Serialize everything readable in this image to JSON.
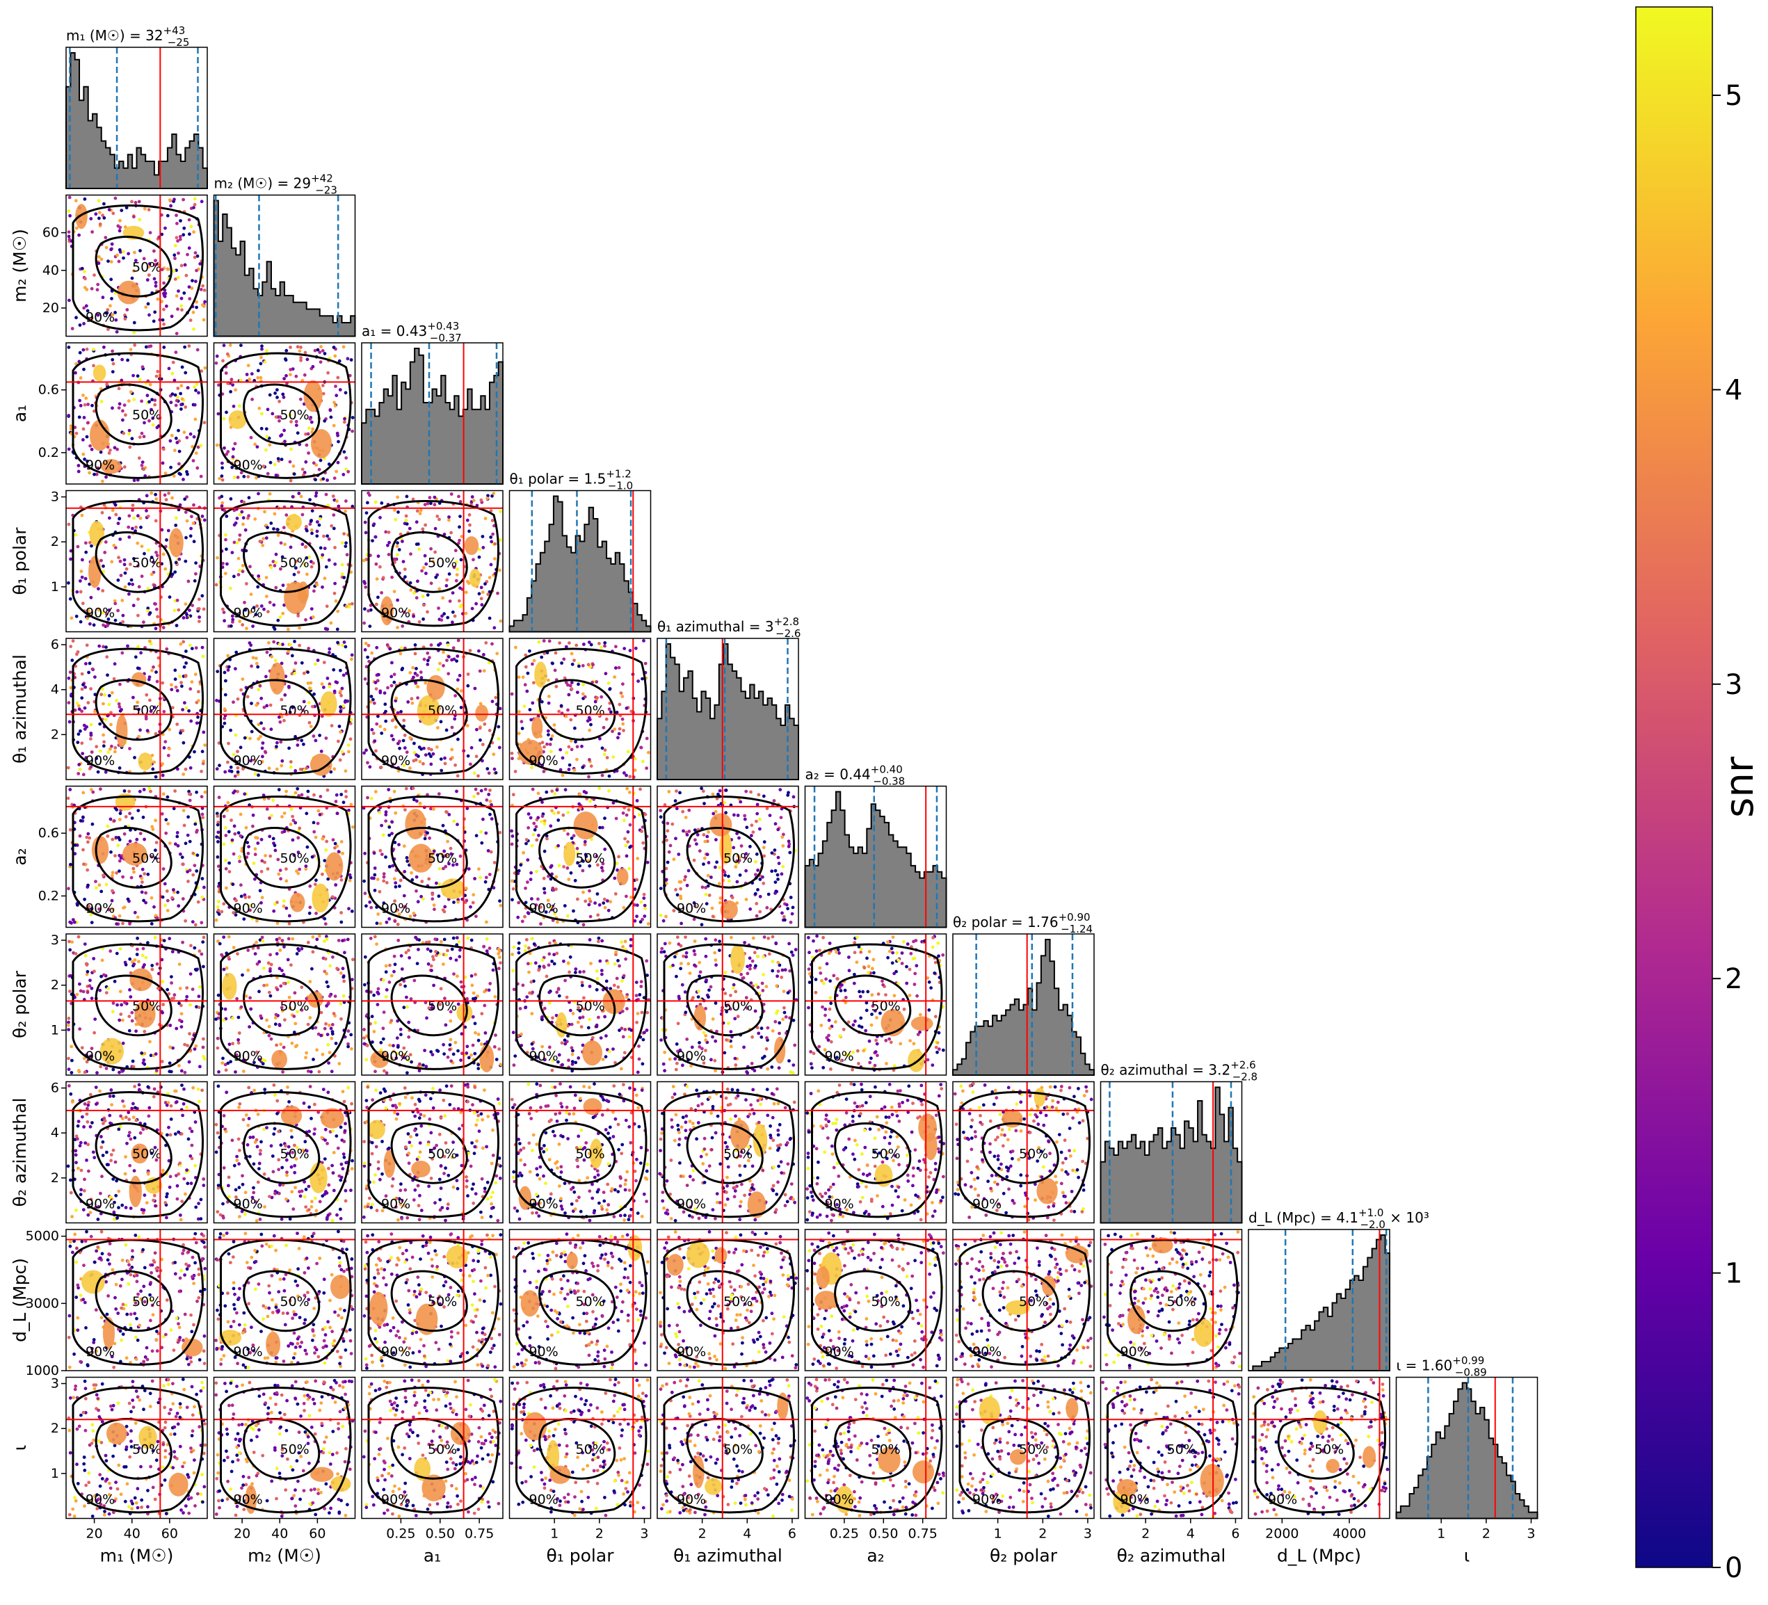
{
  "chart_data": {
    "type": "corner",
    "description_colorbar": {
      "label": "snr",
      "range": [
        0,
        5.3
      ],
      "ticks": [
        "0",
        "1",
        "2",
        "3",
        "4",
        "5"
      ],
      "colormap": [
        "#0d0887",
        "#6a00a8",
        "#b12a90",
        "#e16462",
        "#fca636",
        "#f0f921"
      ]
    },
    "contour_levels": [
      "50%",
      "90%"
    ],
    "colors": {
      "histogram_fill": "#808080",
      "histogram_edge": "#000000",
      "quantile_lines": "#1f77b4",
      "truth_lines": "#ff0000",
      "contours": "#000000"
    },
    "parameters": [
      {
        "name": "m1",
        "axis_label": "m₁ (M☉)",
        "title": "m₁ (M☉) = 32",
        "median": "32",
        "plus": "+43",
        "minus": "−25",
        "range": [
          5,
          80
        ],
        "ticks": [
          20,
          40,
          60
        ],
        "tick_labels": [
          "20",
          "40",
          "60"
        ],
        "quantiles": [
          7,
          32,
          75
        ],
        "truth": 55,
        "hist": [
          15,
          20,
          19,
          13,
          15,
          10,
          11,
          9,
          7,
          6,
          5,
          3,
          4,
          3,
          5,
          3,
          6,
          5,
          4,
          4,
          2,
          4,
          4,
          6,
          8,
          5,
          4,
          6,
          7,
          8,
          6,
          3
        ]
      },
      {
        "name": "m2",
        "axis_label": "m₂ (M☉)",
        "title": "m₂ (M☉) = 29",
        "median": "29",
        "plus": "+42",
        "minus": "−23",
        "range": [
          5,
          80
        ],
        "ticks": [
          20,
          40,
          60
        ],
        "tick_labels": [
          "20",
          "40",
          "60"
        ],
        "quantiles": [
          6,
          29,
          71
        ],
        "truth": null,
        "hist": [
          20,
          14,
          18,
          16,
          13,
          12,
          14,
          9,
          10,
          7,
          6,
          8,
          11,
          7,
          6,
          8,
          6,
          6,
          5,
          5,
          5,
          4,
          4,
          4,
          3,
          3,
          3,
          2,
          3,
          2,
          2,
          3
        ]
      },
      {
        "name": "a1",
        "axis_label": "a₁",
        "title": "a₁ = 0.43",
        "median": "0.43",
        "plus": "+0.43",
        "minus": "−0.37",
        "range": [
          0,
          0.9
        ],
        "ticks": [
          0.25,
          0.5,
          0.75
        ],
        "tick_labels": [
          "0.25",
          "0.50",
          "0.75"
        ],
        "quantiles": [
          0.06,
          0.43,
          0.86
        ],
        "truth": 0.65,
        "hist": [
          9,
          11,
          11,
          10,
          12,
          14,
          13,
          16,
          11,
          15,
          14,
          18,
          20,
          19,
          12,
          12,
          14,
          13,
          16,
          12,
          11,
          13,
          10,
          11,
          14,
          11,
          11,
          13,
          11,
          15,
          16,
          18
        ]
      },
      {
        "name": "theta1_polar",
        "axis_label": "θ₁ polar",
        "title": "θ₁ polar = 1.5",
        "median": "1.5",
        "plus": "+1.2",
        "minus": "−1.0",
        "range": [
          0,
          3.14
        ],
        "ticks": [
          1,
          2,
          3
        ],
        "tick_labels": [
          "1",
          "2",
          "3"
        ],
        "quantiles": [
          0.5,
          1.5,
          2.7
        ],
        "truth": 2.75,
        "hist": [
          1,
          2,
          2,
          3,
          6,
          9,
          12,
          14,
          16,
          19,
          24,
          23,
          17,
          15,
          14,
          17,
          16,
          19,
          22,
          20,
          15,
          16,
          13,
          12,
          14,
          12,
          9,
          7,
          5,
          3,
          2,
          1
        ]
      },
      {
        "name": "theta1_azimuthal",
        "axis_label": "θ₁ azimuthal",
        "title": "θ₁ azimuthal = 3",
        "median": "3",
        "plus": "+2.8",
        "minus": "−2.6",
        "range": [
          0,
          6.28
        ],
        "ticks": [
          2,
          4,
          6
        ],
        "tick_labels": [
          "2",
          "4",
          "6"
        ],
        "quantiles": [
          0.4,
          3.0,
          5.8
        ],
        "truth": 2.9,
        "hist": [
          9,
          13,
          20,
          18,
          17,
          13,
          15,
          16,
          12,
          10,
          13,
          12,
          9,
          11,
          17,
          20,
          17,
          16,
          15,
          13,
          12,
          14,
          12,
          13,
          11,
          12,
          11,
          9,
          8,
          11,
          9,
          8
        ]
      },
      {
        "name": "a2",
        "axis_label": "a₂",
        "title": "a₂ = 0.44",
        "median": "0.44",
        "plus": "+0.40",
        "minus": "−0.38",
        "range": [
          0,
          0.9
        ],
        "ticks": [
          0.25,
          0.5,
          0.75
        ],
        "tick_labels": [
          "0.25",
          "0.50",
          "0.75"
        ],
        "quantiles": [
          0.06,
          0.44,
          0.84
        ],
        "truth": 0.77,
        "hist": [
          10,
          11,
          10,
          12,
          14,
          17,
          19,
          22,
          19,
          15,
          13,
          12,
          13,
          12,
          16,
          20,
          19,
          18,
          17,
          15,
          14,
          13,
          13,
          12,
          10,
          9,
          8,
          9,
          9,
          10,
          9,
          8
        ]
      },
      {
        "name": "theta2_polar",
        "axis_label": "θ₂ polar",
        "title": "θ₂ polar = 1.76",
        "median": "1.76",
        "plus": "+0.90",
        "minus": "−1.24",
        "range": [
          0,
          3.14
        ],
        "ticks": [
          1,
          2,
          3
        ],
        "tick_labels": [
          "1",
          "2",
          "3"
        ],
        "quantiles": [
          0.52,
          1.76,
          2.66
        ],
        "truth": 1.65,
        "hist": [
          1,
          2,
          3,
          6,
          8,
          9,
          9,
          10,
          9,
          11,
          10,
          11,
          12,
          13,
          14,
          12,
          13,
          16,
          12,
          17,
          22,
          25,
          21,
          16,
          12,
          13,
          11,
          8,
          7,
          4,
          2,
          1
        ]
      },
      {
        "name": "theta2_azimuthal",
        "axis_label": "θ₂ azimuthal",
        "title": "θ₂ azimuthal = 3.2",
        "median": "3.2",
        "plus": "+2.6",
        "minus": "−2.8",
        "range": [
          0,
          6.28
        ],
        "ticks": [
          2,
          4,
          6
        ],
        "tick_labels": [
          "2",
          "4",
          "6"
        ],
        "quantiles": [
          0.4,
          3.2,
          5.8
        ],
        "truth": 5.0,
        "hist": [
          9,
          12,
          11,
          10,
          12,
          11,
          12,
          13,
          11,
          12,
          10,
          12,
          13,
          14,
          11,
          12,
          14,
          13,
          11,
          15,
          14,
          12,
          18,
          13,
          12,
          11,
          20,
          16,
          12,
          17,
          11,
          9
        ]
      },
      {
        "name": "dL",
        "axis_label": "d_L (Mpc)",
        "title": "d_L (Mpc) = 4.1",
        "median": "4.1",
        "plus": "+1.0",
        "minus": "−2.0",
        "suffix": "× 10³",
        "range": [
          1000,
          5200
        ],
        "ticks": [
          2000,
          4000
        ],
        "tick_labels": [
          "2000",
          "4000"
        ],
        "quantiles": [
          2100,
          4100,
          5100
        ],
        "truth": 4900,
        "hist": [
          0,
          1,
          1,
          2,
          2,
          3,
          4,
          5,
          5,
          6,
          7,
          7,
          9,
          10,
          9,
          11,
          13,
          14,
          12,
          15,
          17,
          16,
          18,
          20,
          21,
          20,
          23,
          25,
          27,
          29,
          30,
          26
        ]
      },
      {
        "name": "iota",
        "axis_label": "ι",
        "title": "ι = 1.60",
        "median": "1.60",
        "plus": "+0.99",
        "minus": "−0.89",
        "range": [
          0,
          3.14
        ],
        "ticks": [
          1,
          2,
          3
        ],
        "tick_labels": [
          "1",
          "2",
          "3"
        ],
        "quantiles": [
          0.71,
          1.6,
          2.59
        ],
        "truth": 2.2,
        "hist": [
          1,
          2,
          2,
          4,
          5,
          7,
          8,
          10,
          12,
          14,
          13,
          15,
          17,
          19,
          21,
          22,
          21,
          19,
          17,
          18,
          16,
          13,
          12,
          10,
          9,
          7,
          6,
          4,
          3,
          2,
          1,
          1
        ]
      }
    ],
    "ylabels": {
      "m2": {
        "ticks": [
          20,
          40,
          60
        ],
        "tick_labels": [
          "20",
          "40",
          "60"
        ]
      },
      "a1": {
        "ticks": [
          0.2,
          0.6
        ],
        "tick_labels": [
          "0.2",
          "0.6"
        ]
      },
      "theta1_polar": {
        "ticks": [
          1,
          2,
          3
        ],
        "tick_labels": [
          "1",
          "2",
          "3"
        ]
      },
      "theta1_azimuthal": {
        "ticks": [
          2,
          4,
          6
        ],
        "tick_labels": [
          "2",
          "4",
          "6"
        ]
      },
      "a2": {
        "ticks": [
          0.2,
          0.6
        ],
        "tick_labels": [
          "0.2",
          "0.6"
        ]
      },
      "theta2_polar": {
        "ticks": [
          1,
          2,
          3
        ],
        "tick_labels": [
          "1",
          "2",
          "3"
        ]
      },
      "theta2_azimuthal": {
        "ticks": [
          2,
          4,
          6
        ],
        "tick_labels": [
          "2",
          "4",
          "6"
        ]
      },
      "dL": {
        "ticks": [
          1000,
          3000,
          5000
        ],
        "tick_labels": [
          "1000",
          "3000",
          "5000"
        ]
      },
      "iota": {
        "ticks": [
          1,
          2,
          3
        ],
        "tick_labels": [
          "1",
          "2",
          "3"
        ]
      }
    }
  }
}
